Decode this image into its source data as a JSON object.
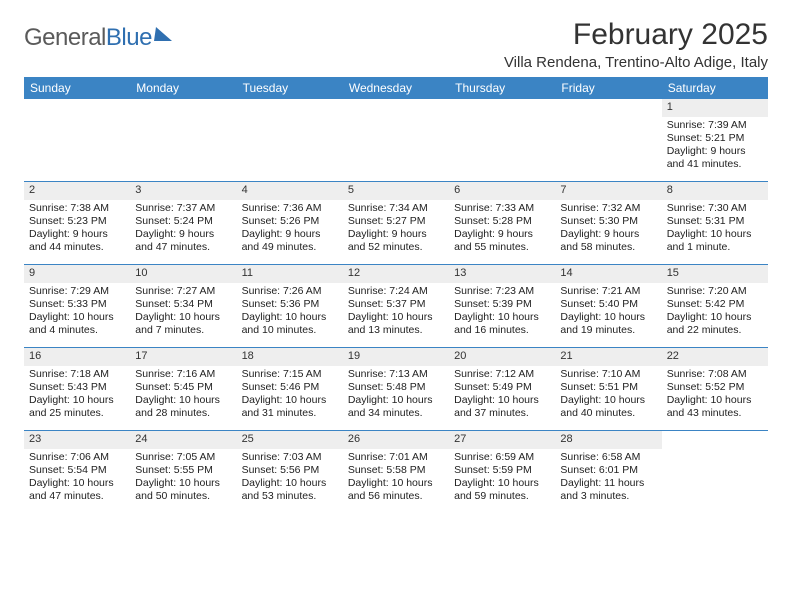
{
  "logo": {
    "text1": "General",
    "text2": "Blue"
  },
  "title": "February 2025",
  "location": "Villa Rendena, Trentino-Alto Adige, Italy",
  "colors": {
    "header_bg": "#3b84c4",
    "header_text": "#ffffff",
    "daynum_bg": "#eeeeee",
    "row_border": "#3b84c4",
    "logo_gray": "#5a5a5a",
    "logo_blue": "#2f6fb0"
  },
  "day_names": [
    "Sunday",
    "Monday",
    "Tuesday",
    "Wednesday",
    "Thursday",
    "Friday",
    "Saturday"
  ],
  "weeks": [
    [
      {
        "n": "",
        "sr": "",
        "ss": "",
        "dl": ""
      },
      {
        "n": "",
        "sr": "",
        "ss": "",
        "dl": ""
      },
      {
        "n": "",
        "sr": "",
        "ss": "",
        "dl": ""
      },
      {
        "n": "",
        "sr": "",
        "ss": "",
        "dl": ""
      },
      {
        "n": "",
        "sr": "",
        "ss": "",
        "dl": ""
      },
      {
        "n": "",
        "sr": "",
        "ss": "",
        "dl": ""
      },
      {
        "n": "1",
        "sr": "Sunrise: 7:39 AM",
        "ss": "Sunset: 5:21 PM",
        "dl": "Daylight: 9 hours and 41 minutes."
      }
    ],
    [
      {
        "n": "2",
        "sr": "Sunrise: 7:38 AM",
        "ss": "Sunset: 5:23 PM",
        "dl": "Daylight: 9 hours and 44 minutes."
      },
      {
        "n": "3",
        "sr": "Sunrise: 7:37 AM",
        "ss": "Sunset: 5:24 PM",
        "dl": "Daylight: 9 hours and 47 minutes."
      },
      {
        "n": "4",
        "sr": "Sunrise: 7:36 AM",
        "ss": "Sunset: 5:26 PM",
        "dl": "Daylight: 9 hours and 49 minutes."
      },
      {
        "n": "5",
        "sr": "Sunrise: 7:34 AM",
        "ss": "Sunset: 5:27 PM",
        "dl": "Daylight: 9 hours and 52 minutes."
      },
      {
        "n": "6",
        "sr": "Sunrise: 7:33 AM",
        "ss": "Sunset: 5:28 PM",
        "dl": "Daylight: 9 hours and 55 minutes."
      },
      {
        "n": "7",
        "sr": "Sunrise: 7:32 AM",
        "ss": "Sunset: 5:30 PM",
        "dl": "Daylight: 9 hours and 58 minutes."
      },
      {
        "n": "8",
        "sr": "Sunrise: 7:30 AM",
        "ss": "Sunset: 5:31 PM",
        "dl": "Daylight: 10 hours and 1 minute."
      }
    ],
    [
      {
        "n": "9",
        "sr": "Sunrise: 7:29 AM",
        "ss": "Sunset: 5:33 PM",
        "dl": "Daylight: 10 hours and 4 minutes."
      },
      {
        "n": "10",
        "sr": "Sunrise: 7:27 AM",
        "ss": "Sunset: 5:34 PM",
        "dl": "Daylight: 10 hours and 7 minutes."
      },
      {
        "n": "11",
        "sr": "Sunrise: 7:26 AM",
        "ss": "Sunset: 5:36 PM",
        "dl": "Daylight: 10 hours and 10 minutes."
      },
      {
        "n": "12",
        "sr": "Sunrise: 7:24 AM",
        "ss": "Sunset: 5:37 PM",
        "dl": "Daylight: 10 hours and 13 minutes."
      },
      {
        "n": "13",
        "sr": "Sunrise: 7:23 AM",
        "ss": "Sunset: 5:39 PM",
        "dl": "Daylight: 10 hours and 16 minutes."
      },
      {
        "n": "14",
        "sr": "Sunrise: 7:21 AM",
        "ss": "Sunset: 5:40 PM",
        "dl": "Daylight: 10 hours and 19 minutes."
      },
      {
        "n": "15",
        "sr": "Sunrise: 7:20 AM",
        "ss": "Sunset: 5:42 PM",
        "dl": "Daylight: 10 hours and 22 minutes."
      }
    ],
    [
      {
        "n": "16",
        "sr": "Sunrise: 7:18 AM",
        "ss": "Sunset: 5:43 PM",
        "dl": "Daylight: 10 hours and 25 minutes."
      },
      {
        "n": "17",
        "sr": "Sunrise: 7:16 AM",
        "ss": "Sunset: 5:45 PM",
        "dl": "Daylight: 10 hours and 28 minutes."
      },
      {
        "n": "18",
        "sr": "Sunrise: 7:15 AM",
        "ss": "Sunset: 5:46 PM",
        "dl": "Daylight: 10 hours and 31 minutes."
      },
      {
        "n": "19",
        "sr": "Sunrise: 7:13 AM",
        "ss": "Sunset: 5:48 PM",
        "dl": "Daylight: 10 hours and 34 minutes."
      },
      {
        "n": "20",
        "sr": "Sunrise: 7:12 AM",
        "ss": "Sunset: 5:49 PM",
        "dl": "Daylight: 10 hours and 37 minutes."
      },
      {
        "n": "21",
        "sr": "Sunrise: 7:10 AM",
        "ss": "Sunset: 5:51 PM",
        "dl": "Daylight: 10 hours and 40 minutes."
      },
      {
        "n": "22",
        "sr": "Sunrise: 7:08 AM",
        "ss": "Sunset: 5:52 PM",
        "dl": "Daylight: 10 hours and 43 minutes."
      }
    ],
    [
      {
        "n": "23",
        "sr": "Sunrise: 7:06 AM",
        "ss": "Sunset: 5:54 PM",
        "dl": "Daylight: 10 hours and 47 minutes."
      },
      {
        "n": "24",
        "sr": "Sunrise: 7:05 AM",
        "ss": "Sunset: 5:55 PM",
        "dl": "Daylight: 10 hours and 50 minutes."
      },
      {
        "n": "25",
        "sr": "Sunrise: 7:03 AM",
        "ss": "Sunset: 5:56 PM",
        "dl": "Daylight: 10 hours and 53 minutes."
      },
      {
        "n": "26",
        "sr": "Sunrise: 7:01 AM",
        "ss": "Sunset: 5:58 PM",
        "dl": "Daylight: 10 hours and 56 minutes."
      },
      {
        "n": "27",
        "sr": "Sunrise: 6:59 AM",
        "ss": "Sunset: 5:59 PM",
        "dl": "Daylight: 10 hours and 59 minutes."
      },
      {
        "n": "28",
        "sr": "Sunrise: 6:58 AM",
        "ss": "Sunset: 6:01 PM",
        "dl": "Daylight: 11 hours and 3 minutes."
      },
      {
        "n": "",
        "sr": "",
        "ss": "",
        "dl": ""
      }
    ]
  ]
}
